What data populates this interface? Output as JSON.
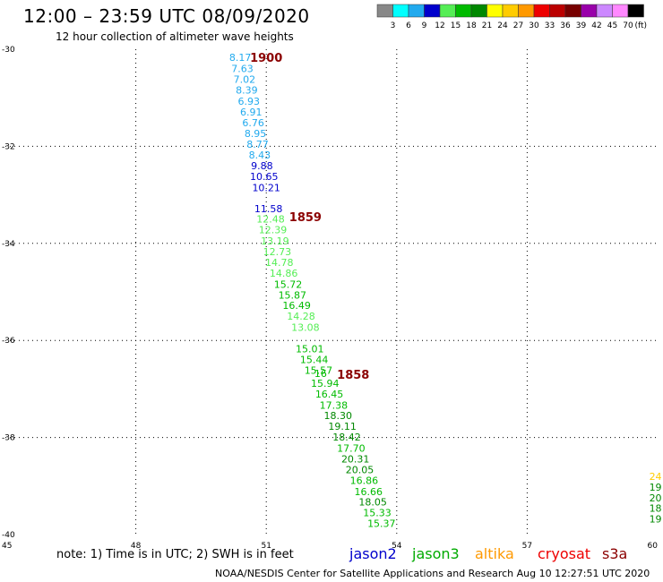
{
  "title": "12:00 – 23:59 UTC 08/09/2020",
  "subtitle": "12 hour collection of altimeter wave heights",
  "note": "note:  1) Time is in UTC;  2) SWH is in feet",
  "credit": "NOAA/NESDIS Center for Satellite Applications and Research    Aug 10 12:27:51 UTC 2020",
  "satellites": [
    {
      "name": "jason2",
      "color": "#0000cc"
    },
    {
      "name": "jason3",
      "color": "#00aa00"
    },
    {
      "name": "altika",
      "color": "#ff9900"
    },
    {
      "name": "cryosat",
      "color": "#ee0000"
    },
    {
      "name": "s3a",
      "color": "#8b0000"
    }
  ],
  "color_scale": {
    "unit": "(ft)",
    "labels": [
      "3",
      "6",
      "9",
      "12",
      "15",
      "18",
      "21",
      "24",
      "27",
      "30",
      "33",
      "36",
      "39",
      "42",
      "45",
      "70"
    ],
    "colors": [
      "#888888",
      "#00ffff",
      "#22aaee",
      "#0000cc",
      "#55ee55",
      "#00bb00",
      "#008800",
      "#ffff00",
      "#ffcc00",
      "#ff9900",
      "#ee0000",
      "#bb0000",
      "#770000",
      "#9900aa",
      "#cc88ff",
      "#ff88ff",
      "#000000"
    ]
  },
  "chart_data": {
    "type": "scatter",
    "xlim": [
      45,
      60
    ],
    "ylim": [
      -40,
      -30
    ],
    "x_ticks": [
      45,
      48,
      51,
      54,
      57,
      60
    ],
    "y_ticks": [
      -30,
      -32,
      -34,
      -36,
      -38,
      -40
    ],
    "x_tick_labels": [
      "45",
      "48",
      "51",
      "54",
      "57",
      "60"
    ],
    "y_tick_labels": [
      "-30",
      "-32",
      "-34",
      "-36",
      "-38",
      "-40"
    ],
    "grid": true,
    "pass_labels": [
      {
        "label": "1900",
        "lon": 51.0,
        "lat": -30.17
      },
      {
        "label": "1859",
        "lon": 51.9,
        "lat": -33.45
      },
      {
        "label": "1858",
        "lon": 53.0,
        "lat": -36.7
      }
    ],
    "points": [
      {
        "lon": 50.4,
        "lat": -30.17,
        "swh": 8.17
      },
      {
        "lon": 50.45,
        "lat": -30.4,
        "swh": 7.63
      },
      {
        "lon": 50.5,
        "lat": -30.62,
        "swh": 7.02
      },
      {
        "lon": 50.55,
        "lat": -30.84,
        "swh": 8.39
      },
      {
        "lon": 50.6,
        "lat": -31.07,
        "swh": 6.93
      },
      {
        "lon": 50.65,
        "lat": -31.29,
        "swh": 6.91
      },
      {
        "lon": 50.7,
        "lat": -31.51,
        "swh": 6.76
      },
      {
        "lon": 50.75,
        "lat": -31.73,
        "swh": 8.95
      },
      {
        "lon": 50.8,
        "lat": -31.96,
        "swh": 8.77
      },
      {
        "lon": 50.85,
        "lat": -32.18,
        "swh": 8.43
      },
      {
        "lon": 50.9,
        "lat": -32.4,
        "swh": 9.88
      },
      {
        "lon": 50.95,
        "lat": -32.62,
        "swh": 10.65
      },
      {
        "lon": 51.0,
        "lat": -32.85,
        "swh": 10.21
      },
      {
        "lon": 51.05,
        "lat": -33.28,
        "swh": 11.58
      },
      {
        "lon": 51.1,
        "lat": -33.5,
        "swh": 12.48
      },
      {
        "lon": 51.15,
        "lat": -33.72,
        "swh": 12.39
      },
      {
        "lon": 51.2,
        "lat": -33.95,
        "swh": 13.19
      },
      {
        "lon": 51.25,
        "lat": -34.17,
        "swh": 12.73
      },
      {
        "lon": 51.3,
        "lat": -34.39,
        "swh": 14.78
      },
      {
        "lon": 51.4,
        "lat": -34.61,
        "swh": 14.86
      },
      {
        "lon": 51.5,
        "lat": -34.84,
        "swh": 15.72
      },
      {
        "lon": 51.6,
        "lat": -35.06,
        "swh": 15.87
      },
      {
        "lon": 51.7,
        "lat": -35.28,
        "swh": 16.49
      },
      {
        "lon": 51.8,
        "lat": -35.5,
        "swh": 14.28
      },
      {
        "lon": 51.9,
        "lat": -35.73,
        "swh": 13.08
      },
      {
        "lon": 52.0,
        "lat": -36.17,
        "swh": 15.01
      },
      {
        "lon": 52.1,
        "lat": -36.39,
        "swh": 15.44
      },
      {
        "lon": 52.2,
        "lat": -36.61,
        "swh": 15.57
      },
      {
        "lon": 52.25,
        "lat": -36.68,
        "swh": 16.0
      },
      {
        "lon": 52.35,
        "lat": -36.88,
        "swh": 15.94
      },
      {
        "lon": 52.45,
        "lat": -37.1,
        "swh": 16.45
      },
      {
        "lon": 52.55,
        "lat": -37.33,
        "swh": 17.38
      },
      {
        "lon": 52.65,
        "lat": -37.55,
        "swh": 18.3
      },
      {
        "lon": 52.75,
        "lat": -37.77,
        "swh": 19.11
      },
      {
        "lon": 52.85,
        "lat": -37.99,
        "swh": 18.42
      },
      {
        "lon": 52.95,
        "lat": -38.22,
        "swh": 17.7
      },
      {
        "lon": 53.05,
        "lat": -38.44,
        "swh": 20.31
      },
      {
        "lon": 53.15,
        "lat": -38.66,
        "swh": 20.05
      },
      {
        "lon": 53.25,
        "lat": -38.88,
        "swh": 16.86
      },
      {
        "lon": 53.35,
        "lat": -39.11,
        "swh": 16.66
      },
      {
        "lon": 53.45,
        "lat": -39.33,
        "swh": 18.05
      },
      {
        "lon": 53.55,
        "lat": -39.55,
        "swh": 15.33
      },
      {
        "lon": 53.65,
        "lat": -39.77,
        "swh": 15.37
      },
      {
        "lon": 59.95,
        "lat": -38.8,
        "swh": 24.0
      },
      {
        "lon": 59.95,
        "lat": -39.02,
        "swh": 19.0
      },
      {
        "lon": 59.95,
        "lat": -39.24,
        "swh": 20.0
      },
      {
        "lon": 59.95,
        "lat": -39.46,
        "swh": 18.0
      },
      {
        "lon": 59.95,
        "lat": -39.68,
        "swh": 19.0
      }
    ]
  }
}
